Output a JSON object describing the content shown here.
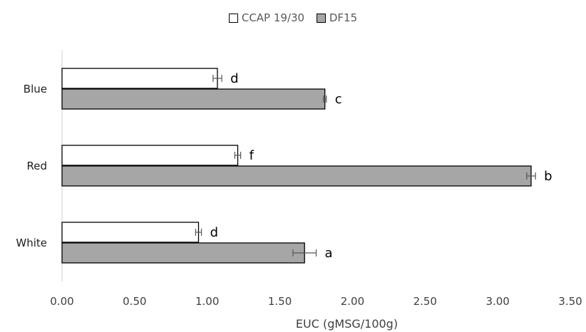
{
  "chart_data": {
    "type": "bar",
    "orientation": "horizontal",
    "categories": [
      "Blue",
      "Red",
      "White"
    ],
    "series": [
      {
        "name": "CCAP 19/30",
        "color": "#ffffff",
        "values": [
          1.07,
          1.21,
          0.94
        ],
        "errors": [
          0.03,
          0.02,
          0.02
        ],
        "labels": [
          "d",
          "f",
          "d"
        ]
      },
      {
        "name": "DF15",
        "color": "#a6a6a6",
        "values": [
          1.81,
          3.23,
          1.67
        ],
        "errors": [
          0.01,
          0.03,
          0.08
        ],
        "labels": [
          "c",
          "b",
          "a"
        ]
      }
    ],
    "xlabel": "EUC (gMSG/100g)",
    "xlim": [
      0,
      3.5
    ],
    "xticks": [
      "0.00",
      "0.50",
      "1.00",
      "1.50",
      "2.00",
      "2.50",
      "3.00",
      "3.50"
    ],
    "grid": false,
    "legend_position": "top"
  }
}
